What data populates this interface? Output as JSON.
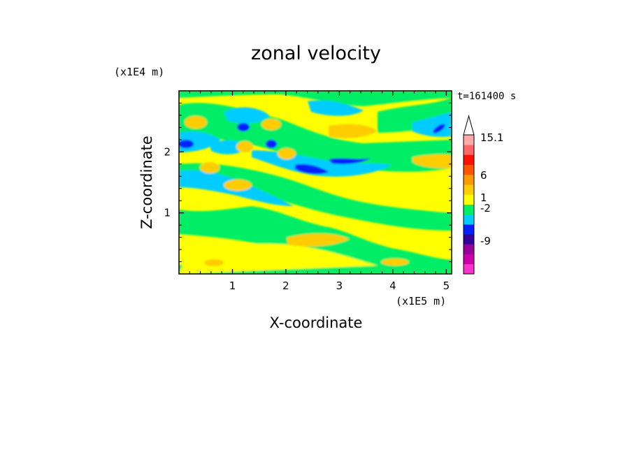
{
  "chart_data": {
    "type": "heatmap",
    "title": "zonal velocity",
    "xlabel": "X-coordinate",
    "ylabel": "Z-coordinate",
    "x_scale_label": "(x1E5 m)",
    "y_scale_label": "(x1E4 m)",
    "time_label": "t=161400 s",
    "xlim": [
      0,
      5.1
    ],
    "ylim": [
      0,
      3.0
    ],
    "x_ticks": [
      1,
      2,
      3,
      4,
      5
    ],
    "y_ticks": [
      1,
      2
    ],
    "colorbar": {
      "colors": [
        "#ff33cc",
        "#cc00aa",
        "#990099",
        "#330099",
        "#0022ff",
        "#00ccff",
        "#00ee66",
        "#ffff00",
        "#ffcc00",
        "#ff9900",
        "#ff5500",
        "#ff1100",
        "#ff6666",
        "#ffaaaa"
      ],
      "tick_labels": [
        "15.1",
        "6",
        "1",
        "-2",
        "-9"
      ],
      "tick_values": [
        15.1,
        6,
        1,
        -2,
        -9
      ],
      "extend": "max"
    }
  }
}
